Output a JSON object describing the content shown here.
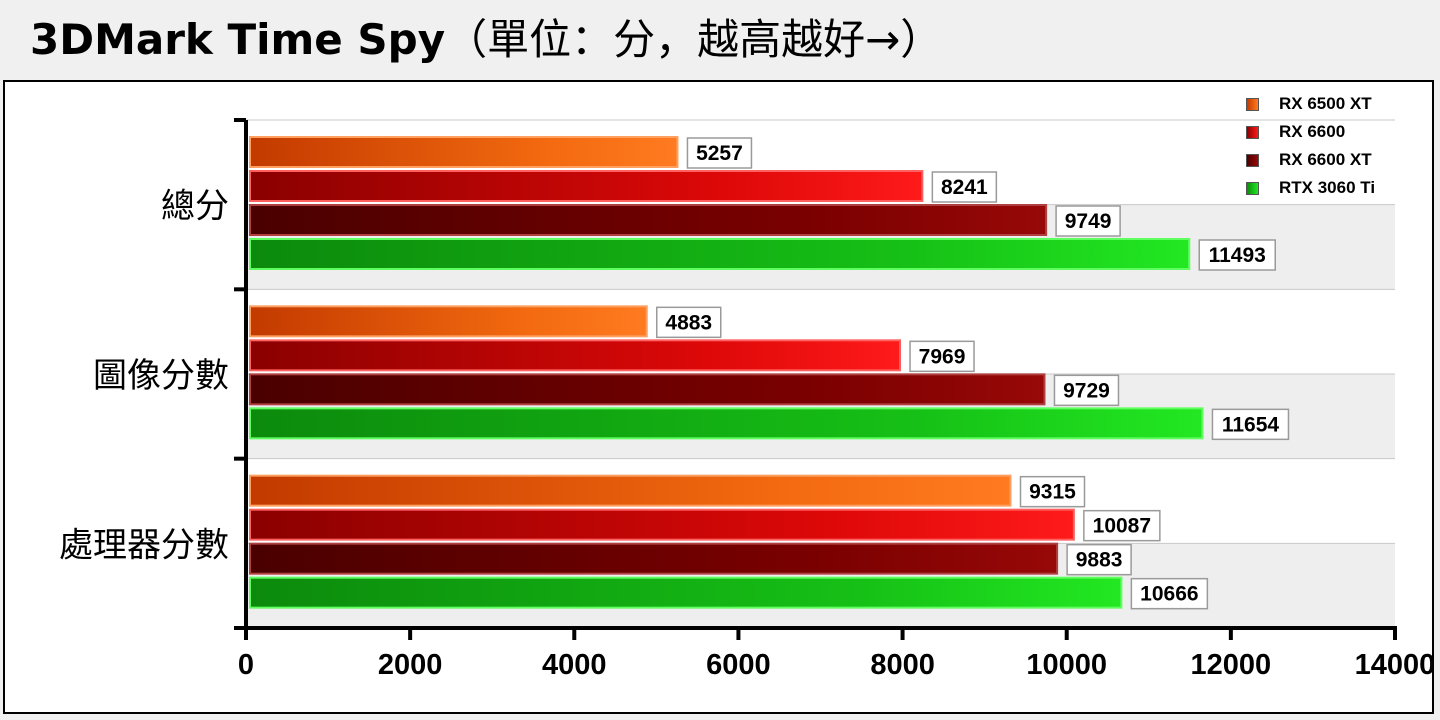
{
  "title": {
    "main": "3DMark Time Spy",
    "paren": "（單位：分，越高越好→）"
  },
  "chart_data": {
    "type": "bar",
    "orientation": "horizontal",
    "title": "3DMark Time Spy（單位：分，越高越好→）",
    "xlabel": "",
    "ylabel": "",
    "categories": [
      "總分",
      "圖像分數",
      "處理器分數"
    ],
    "series": [
      {
        "name": "RX 6500 XT",
        "values": [
          5257,
          4883,
          9315
        ],
        "color": "#f07020"
      },
      {
        "name": "RX 6600",
        "values": [
          8241,
          7969,
          10087
        ],
        "color": "#e81010"
      },
      {
        "name": "RX 6600 XT",
        "values": [
          9749,
          9729,
          9883
        ],
        "color": "#8a0a0a"
      },
      {
        "name": "RTX 3060 Ti",
        "values": [
          11493,
          11654,
          10666
        ],
        "color": "#18d018"
      }
    ],
    "xlim": [
      0,
      14000
    ],
    "ticks": [
      "0",
      "2000",
      "4000",
      "6000",
      "8000",
      "10000",
      "12000",
      "14000"
    ],
    "grid": true,
    "legend_position": "top-right"
  }
}
